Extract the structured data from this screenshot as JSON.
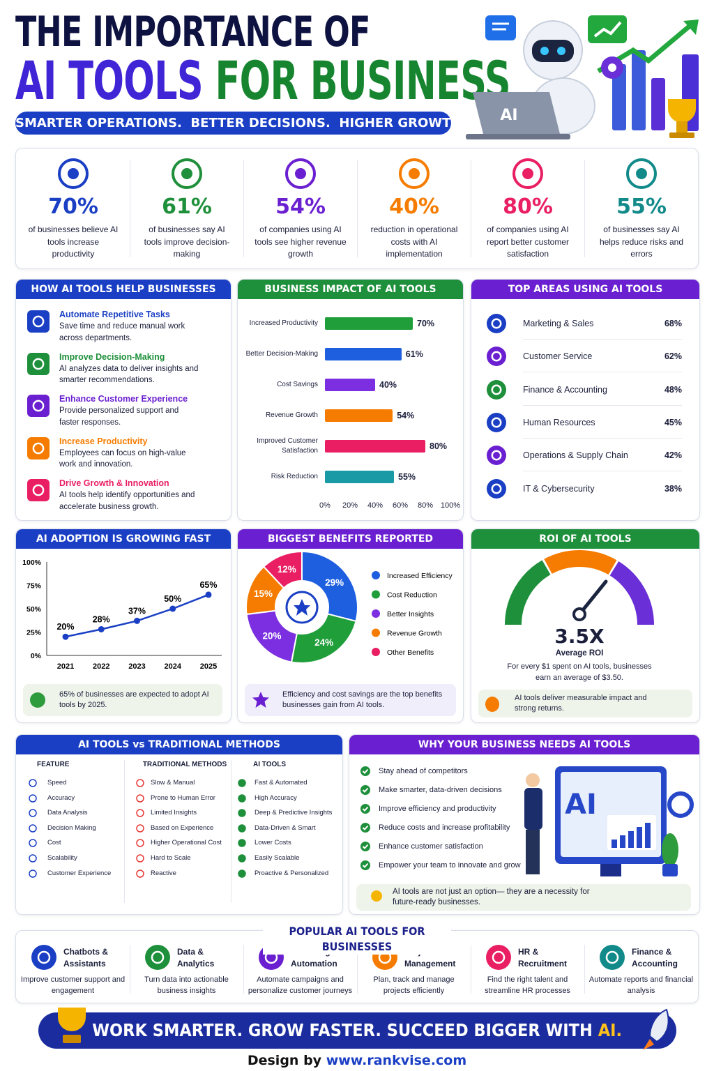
{
  "header": {
    "title_line1": "THE IMPORTANCE OF",
    "title_ai": "AI TOOLS",
    "title_business": "FOR BUSINESS",
    "tagline": "SMARTER OPERATIONS.  BETTER DECISIONS.  HIGHER GROWTH.",
    "laptop_label": "AI"
  },
  "stats": [
    {
      "value": "70%",
      "text": "of businesses believe AI tools increase productivity"
    },
    {
      "value": "61%",
      "text": "of businesses say AI tools improve decision-making"
    },
    {
      "value": "54%",
      "text": "of companies using AI tools see higher revenue growth"
    },
    {
      "value": "40%",
      "text": "reduction in operational costs with AI implementation"
    },
    {
      "value": "80%",
      "text": "of companies using AI report better customer satisfaction"
    },
    {
      "value": "55%",
      "text": "of businesses say AI helps reduce risks and errors"
    }
  ],
  "help": {
    "title": "HOW AI TOOLS HELP BUSINESSES",
    "items": [
      {
        "title": "Automate Repetitive Tasks",
        "text": "Save time and reduce manual work across departments."
      },
      {
        "title": "Improve Decision-Making",
        "text": "AI analyzes data to deliver insights and smarter recommendations."
      },
      {
        "title": "Enhance Customer Experience",
        "text": "Provide personalized support and faster responses."
      },
      {
        "title": "Increase Productivity",
        "text": "Employees can focus on high-value work and innovation."
      },
      {
        "title": "Drive Growth & Innovation",
        "text": "AI tools help identify opportunities and accelerate business growth."
      }
    ]
  },
  "top_areas": {
    "title": "TOP AREAS USING AI TOOLS",
    "items": [
      {
        "name": "Marketing & Sales",
        "value": "68%"
      },
      {
        "name": "Customer Service",
        "value": "62%"
      },
      {
        "name": "Finance & Accounting",
        "value": "48%"
      },
      {
        "name": "Human Resources",
        "value": "45%"
      },
      {
        "name": "Operations & Supply Chain",
        "value": "42%"
      },
      {
        "name": "IT & Cybersecurity",
        "value": "38%"
      }
    ]
  },
  "chart_data": [
    {
      "type": "bar",
      "title": "BUSINESS IMPACT OF AI TOOLS",
      "orientation": "horizontal",
      "categories": [
        "Increased Productivity",
        "Better Decision-Making",
        "Cost Savings",
        "Revenue Growth",
        "Improved Customer Satisfaction",
        "Risk Reduction"
      ],
      "values": [
        70,
        61,
        40,
        54,
        80,
        55
      ],
      "value_labels": [
        "70%",
        "61%",
        "40%",
        "54%",
        "80%",
        "55%"
      ],
      "colors": [
        "#1f9e3a",
        "#1e5fe0",
        "#7b2fe0",
        "#f57c00",
        "#e91e63",
        "#1a9aa5"
      ],
      "xlim": [
        0,
        100
      ],
      "xticks": [
        {
          "value": 0,
          "label": "0%"
        },
        {
          "value": 20,
          "label": "20%"
        },
        {
          "value": 40,
          "label": "40%"
        },
        {
          "value": 60,
          "label": "60%"
        },
        {
          "value": 80,
          "label": "80%"
        },
        {
          "value": 100,
          "label": "100%"
        }
      ]
    },
    {
      "type": "line",
      "title": "AI ADOPTION IS GROWING FAST",
      "categories": [
        "2021",
        "2022",
        "2023",
        "2024",
        "2025"
      ],
      "values": [
        20,
        28,
        37,
        50,
        65
      ],
      "value_labels": [
        "20%",
        "28%",
        "37%",
        "50%",
        "65%"
      ],
      "color": "#1a3fc4",
      "ylim": [
        0,
        100
      ],
      "yticks": [
        {
          "value": 0,
          "label": "0%"
        },
        {
          "value": 25,
          "label": "25%"
        },
        {
          "value": 50,
          "label": "50%"
        },
        {
          "value": 75,
          "label": "75%"
        },
        {
          "value": 100,
          "label": "100%"
        }
      ],
      "annotation": "65% of businesses are expected to adopt AI tools by 2025."
    },
    {
      "type": "pie",
      "title": "BIGGEST BENEFITS REPORTED",
      "donut": true,
      "categories": [
        "Increased Efficiency",
        "Cost Reduction",
        "Better Insights",
        "Revenue Growth",
        "Other Benefits"
      ],
      "values": [
        29,
        24,
        20,
        15,
        12
      ],
      "value_labels": [
        "29%",
        "24%",
        "20%",
        "15%",
        "12%"
      ],
      "colors": [
        "#1e5fe0",
        "#1f9e3a",
        "#7b2fe0",
        "#f57c00",
        "#e91e63"
      ],
      "annotation": "Efficiency and cost savings are the top benefits businesses gain from AI tools."
    }
  ],
  "roi": {
    "title": "ROI OF AI TOOLS",
    "value": "3.5X",
    "label": "Average ROI",
    "text": "For every $1 spent on AI tools, businesses earn an average of $3.50.",
    "note": "AI tools deliver measurable impact and strong returns."
  },
  "comparison": {
    "title": "AI TOOLS vs TRADITIONAL METHODS",
    "headers": [
      "FEATURE",
      "TRADITIONAL METHODS",
      "AI TOOLS"
    ],
    "rows": [
      [
        "Speed",
        "Slow & Manual",
        "Fast & Automated"
      ],
      [
        "Accuracy",
        "Prone to Human Error",
        "High Accuracy"
      ],
      [
        "Data Analysis",
        "Limited Insights",
        "Deep & Predictive Insights"
      ],
      [
        "Decision Making",
        "Based on Experience",
        "Data-Driven & Smart"
      ],
      [
        "Cost",
        "Higher Operational Cost",
        "Lower Costs"
      ],
      [
        "Scalability",
        "Hard to Scale",
        "Easily Scalable"
      ],
      [
        "Customer Experience",
        "Reactive",
        "Proactive & Personalized"
      ]
    ]
  },
  "why": {
    "title": "WHY YOUR BUSINESS NEEDS AI TOOLS",
    "items": [
      "Stay ahead of competitors",
      "Make smarter, data-driven decisions",
      "Improve efficiency and productivity",
      "Reduce costs and increase profitability",
      "Enhance customer satisfaction",
      "Empower your team to innovate and grow"
    ],
    "screen_label": "AI",
    "note": "AI tools are not just an option— they are a necessity for future-ready businesses."
  },
  "popular": {
    "title": "POPULAR AI TOOLS FOR BUSINESSES",
    "items": [
      {
        "name": "Chatbots & Assistants",
        "text": "Improve customer support and engagement"
      },
      {
        "name": "Data & Analytics",
        "text": "Turn data into actionable business insights"
      },
      {
        "name": "Marketing Automation",
        "text": "Automate campaigns and personalize customer journeys"
      },
      {
        "name": "Project Management",
        "text": "Plan, track and manage projects efficiently"
      },
      {
        "name": "HR & Recruitment",
        "text": "Find the right talent and streamline HR processes"
      },
      {
        "name": "Finance & Accounting",
        "text": "Automate reports and financial analysis"
      }
    ]
  },
  "footer": {
    "banner": "WORK SMARTER. GROW FASTER. SUCCEED BIGGER WITH",
    "banner_ai": "AI.",
    "credit_prefix": "Design by",
    "credit_url": "www.rankvise.com"
  }
}
